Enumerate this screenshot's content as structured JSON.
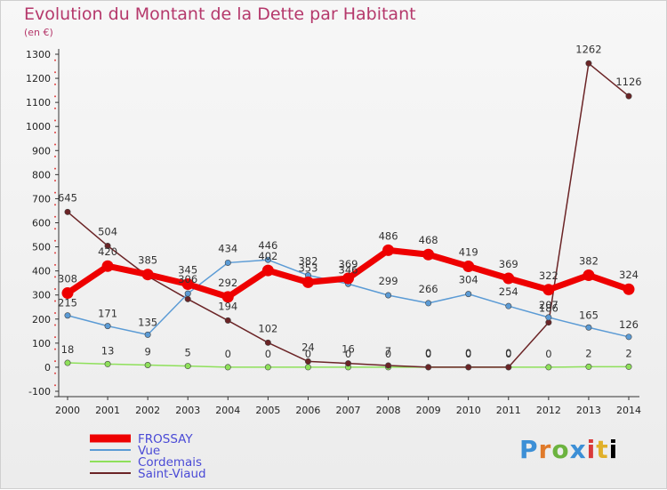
{
  "header": {
    "title": "Evolution du Montant de la Dette par Habitant",
    "unit": "(en €)"
  },
  "logo": {
    "text": "Proxiti"
  },
  "chart_data": {
    "type": "line",
    "x": [
      "2000",
      "2001",
      "2002",
      "2003",
      "2004",
      "2005",
      "2006",
      "2007",
      "2008",
      "2009",
      "2010",
      "2011",
      "2012",
      "2013",
      "2014"
    ],
    "ylim": [
      -100,
      1300
    ],
    "yticks": [
      -100,
      0,
      100,
      200,
      300,
      400,
      500,
      600,
      700,
      800,
      900,
      1000,
      1100,
      1200,
      1300
    ],
    "grid": false,
    "legend_position": "bottom-left",
    "series": [
      {
        "name": "FROSSAY",
        "color": "#ee0000",
        "values": [
          308,
          420,
          385,
          345,
          292,
          402,
          353,
          369,
          486,
          468,
          419,
          369,
          322,
          382,
          324
        ],
        "labels": [
          "308",
          "420",
          "385",
          "345",
          "292",
          "402",
          "353",
          "369",
          "486",
          "468",
          "419",
          "369",
          "322",
          "382",
          "324"
        ]
      },
      {
        "name": "Vue",
        "color": "#5b9bd5",
        "values": [
          215,
          171,
          135,
          306,
          434,
          446,
          382,
          346,
          299,
          266,
          304,
          254,
          207,
          165,
          126
        ],
        "labels": [
          "215",
          "171",
          "135",
          "306",
          "434",
          "446",
          "382",
          "346",
          "299",
          "266",
          "304",
          "254",
          "207",
          "165",
          "126"
        ]
      },
      {
        "name": "Cordemais",
        "color": "#8ee05a",
        "values": [
          18,
          13,
          9,
          5,
          0,
          0,
          0,
          0,
          0,
          0,
          0,
          0,
          0,
          2,
          2
        ],
        "labels": [
          "18",
          "13",
          "9",
          "5",
          "0",
          "0",
          "0",
          "0",
          "0",
          "0",
          "0",
          "0",
          "0",
          "2",
          "2"
        ]
      },
      {
        "name": "Saint-Viaud",
        "color": "#6b2426",
        "values": [
          645,
          504,
          378,
          283,
          194,
          102,
          24,
          16,
          7,
          0,
          0,
          0,
          186,
          1262,
          1126
        ],
        "labels": [
          "645",
          "504",
          "",
          "",
          "194",
          "102",
          "24",
          "16",
          "7",
          "0",
          "0",
          "0",
          "186",
          "1262",
          "1126"
        ]
      }
    ]
  }
}
